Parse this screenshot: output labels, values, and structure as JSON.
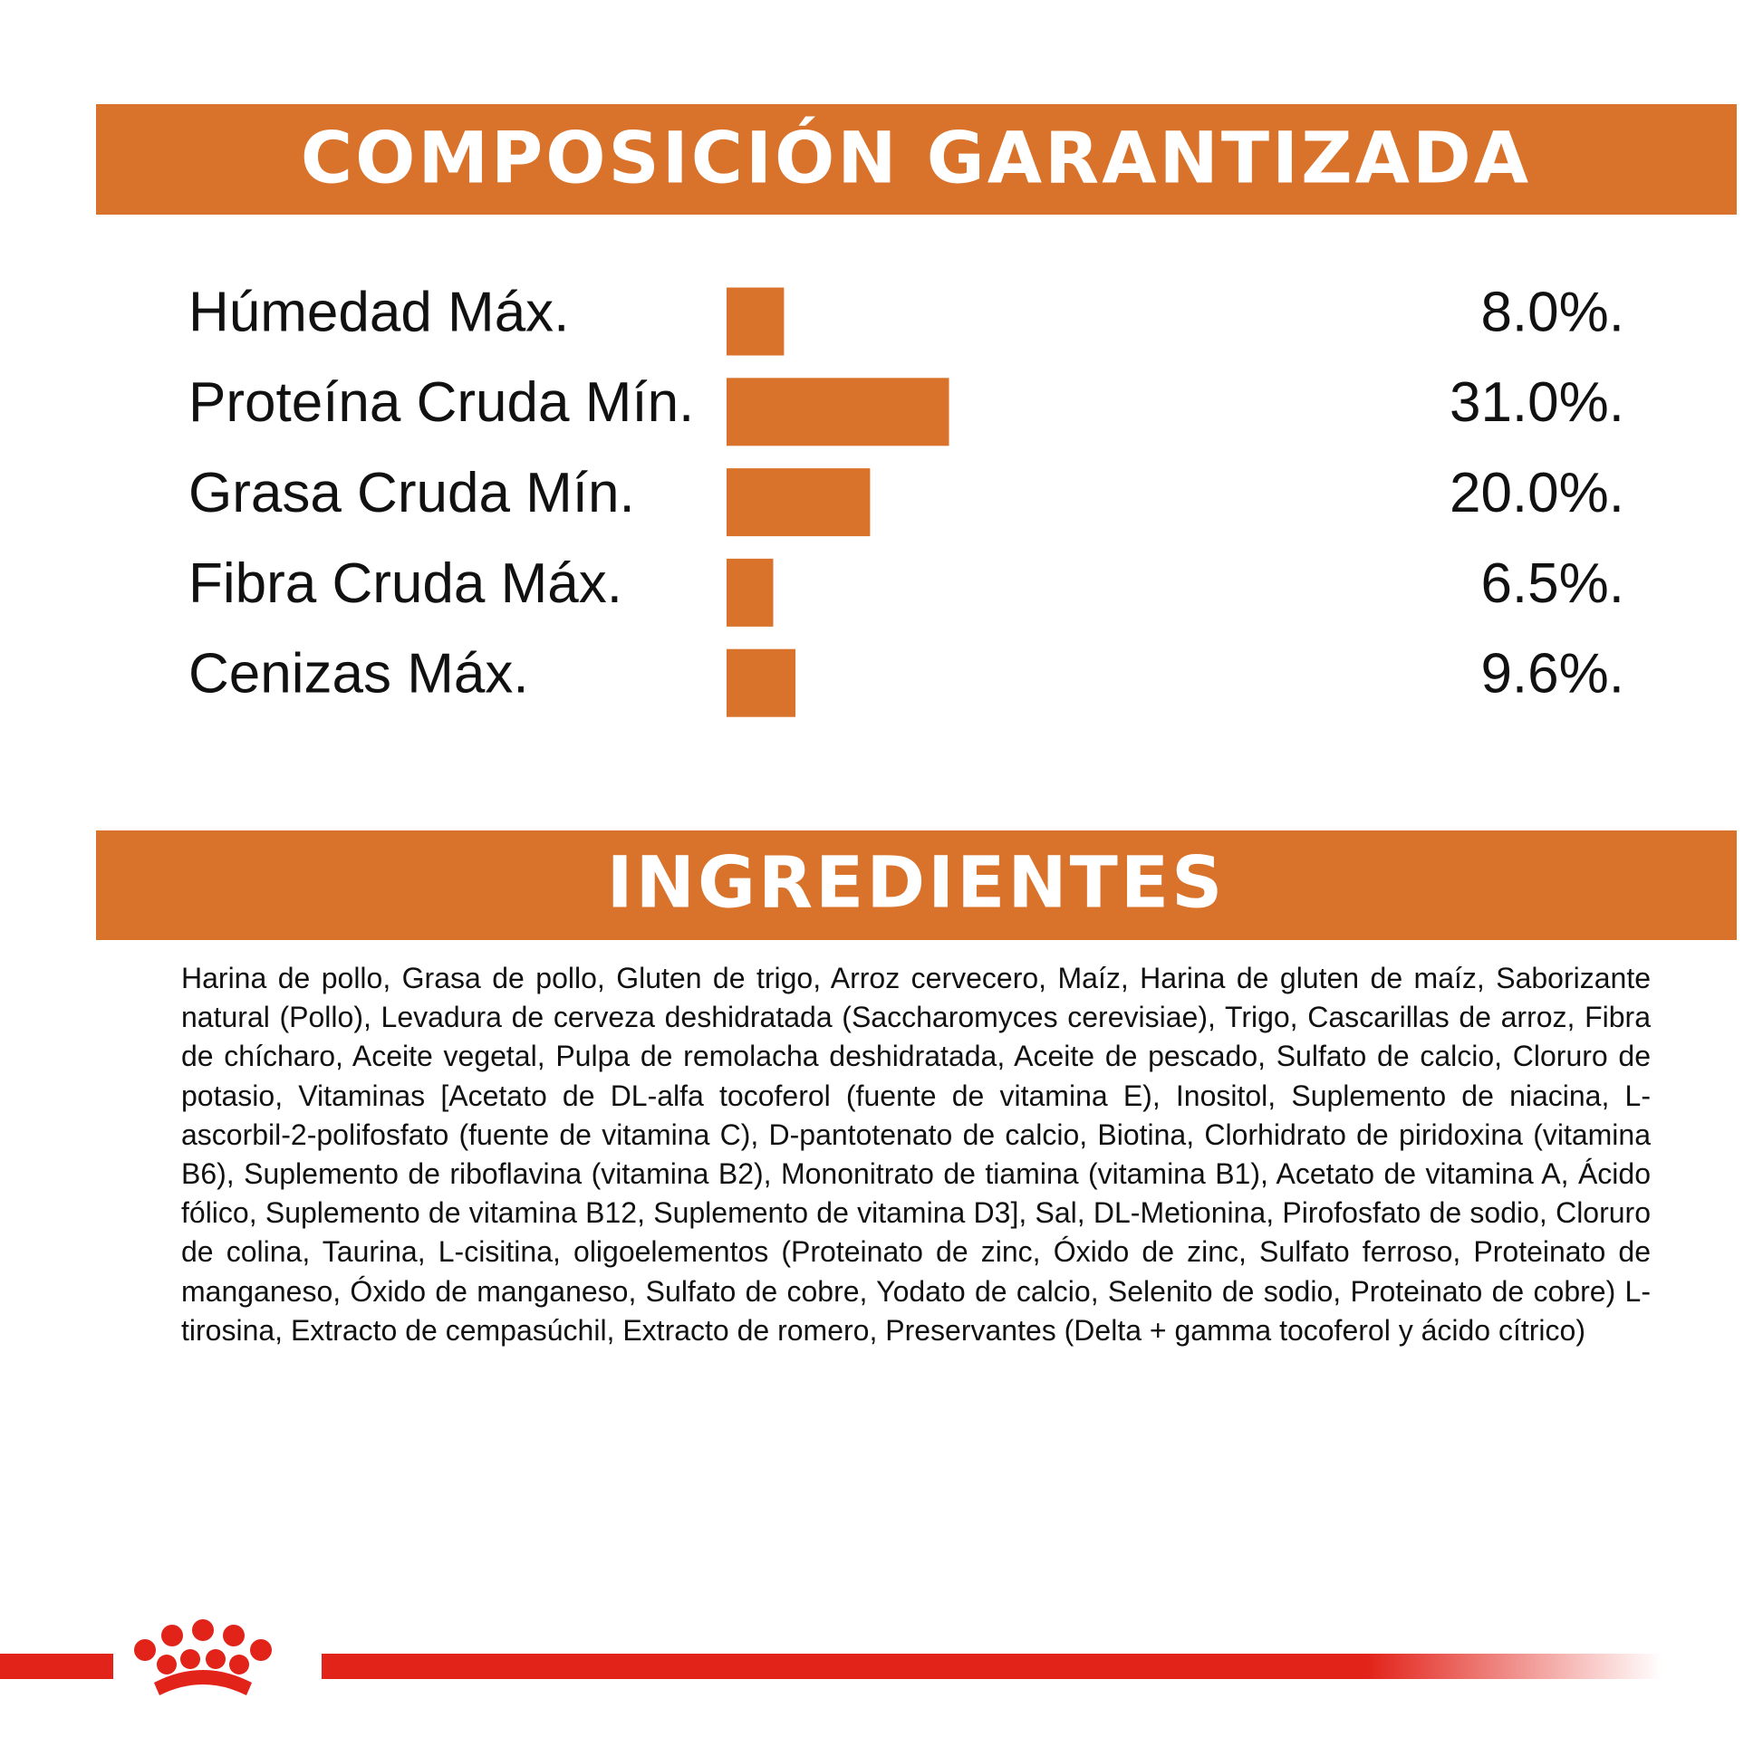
{
  "chart_data": {
    "type": "bar",
    "orientation": "horizontal",
    "title": "COMPOSICIÓN GARANTIZADA",
    "categories": [
      "Húmedad Máx.",
      "Proteína Cruda Mín.",
      "Grasa Cruda Mín.",
      "Fibra Cruda Máx.",
      "Cenizas Máx."
    ],
    "values": [
      8.0,
      31.0,
      20.0,
      6.5,
      9.6
    ],
    "value_labels": [
      "8.0%.",
      "31.0%.",
      "20.0%.",
      "6.5%.",
      "9.6%."
    ],
    "color": "#d9722a",
    "xlim": [
      0,
      100
    ]
  },
  "ingredients": {
    "title": "INGREDIENTES",
    "text": "Harina de pollo, Grasa de pollo, Gluten de trigo, Arroz cervecero, Maíz, Harina de gluten de maíz, Saborizante natural (Pollo), Levadura de cerveza deshidratada (Saccharomyces cerevisiae), Trigo, Cascarillas de arroz, Fibra de chícharo, Aceite vegetal, Pulpa de remolacha deshidratada, Aceite de pescado, Sulfato de calcio, Cloruro de potasio, Vitaminas [Acetato de DL-alfa tocoferol (fuente de vitamina E), Inositol, Suplemento de niacina, L-ascorbil-2-polifosfato (fuente de vitamina C), D-pantotenato de calcio, Biotina, Clorhidrato de piridoxina (vitamina B6), Suplemento de riboflavina (vitamina B2), Mononitrato de tiamina (vitamina B1), Acetato de vitamina A, Ácido fólico, Suplemento de vitamina B12, Suplemento de vitamina D3], Sal, DL-Metionina, Pirofosfato de sodio, Cloruro de colina, Taurina, L-cisitina, oligoelementos (Proteinato de zinc, Óxido de zinc, Sulfato ferroso, Proteinato de manganeso, Óxido de manganeso, Sulfato de cobre, Yodato de calcio, Selenito de sodio, Proteinato de cobre) L-tirosina, Extracto de cempasúchil, Extracto de romero, Preservantes (Delta + gamma tocoferol y ácido cítrico)"
  }
}
